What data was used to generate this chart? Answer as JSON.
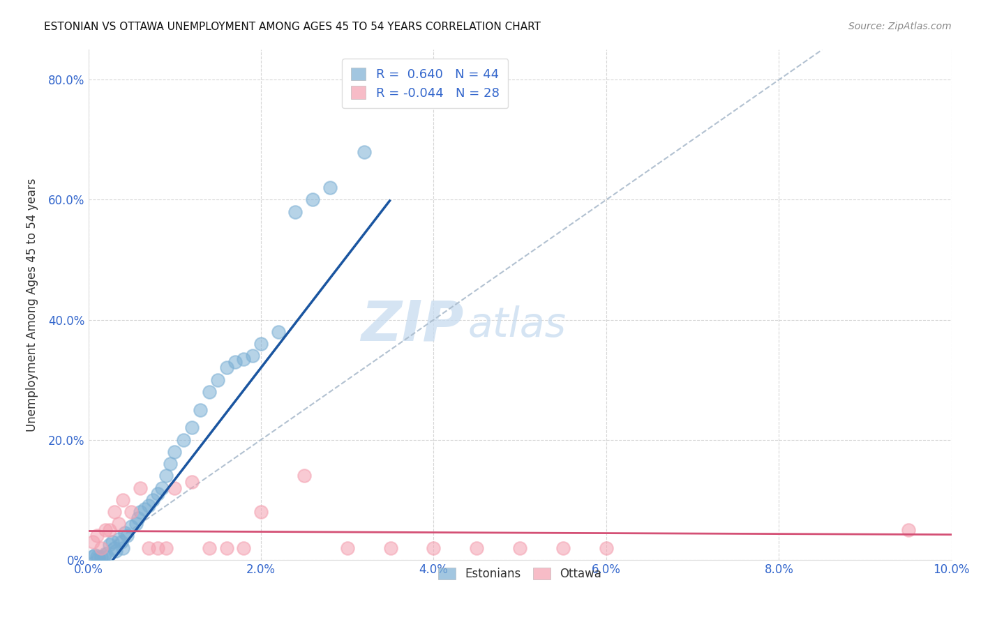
{
  "title": "ESTONIAN VS OTTAWA UNEMPLOYMENT AMONG AGES 45 TO 54 YEARS CORRELATION CHART",
  "source": "Source: ZipAtlas.com",
  "xlabel": "",
  "ylabel": "Unemployment Among Ages 45 to 54 years",
  "xlim": [
    0.0,
    10.0
  ],
  "ylim": [
    0.0,
    85.0
  ],
  "xticks": [
    0.0,
    2.0,
    4.0,
    6.0,
    8.0,
    10.0
  ],
  "xtick_labels": [
    "0.0%",
    "2.0%",
    "4.0%",
    "6.0%",
    "8.0%",
    "10.0%"
  ],
  "yticks": [
    0.0,
    20.0,
    40.0,
    60.0,
    80.0
  ],
  "ytick_labels": [
    "0%",
    "20.0%",
    "40.0%",
    "60.0%",
    "80.0%"
  ],
  "blue_color": "#7BAFD4",
  "pink_color": "#F4A0B0",
  "blue_line_color": "#1A55A0",
  "pink_line_color": "#D45075",
  "diag_line_color": "#AABBCC",
  "legend_R_blue": "0.640",
  "legend_N_blue": "44",
  "legend_R_pink": "-0.044",
  "legend_N_pink": "28",
  "legend_label_blue": "Estonians",
  "legend_label_pink": "Ottawa",
  "watermark_zip": "ZIP",
  "watermark_atlas": "atlas",
  "estonians_x": [
    0.05,
    0.08,
    0.1,
    0.12,
    0.15,
    0.18,
    0.2,
    0.22,
    0.25,
    0.28,
    0.3,
    0.32,
    0.35,
    0.38,
    0.4,
    0.42,
    0.45,
    0.5,
    0.55,
    0.58,
    0.6,
    0.65,
    0.7,
    0.75,
    0.8,
    0.85,
    0.9,
    0.95,
    1.0,
    1.1,
    1.2,
    1.3,
    1.4,
    1.5,
    1.6,
    1.7,
    1.8,
    1.9,
    2.0,
    2.2,
    2.4,
    2.6,
    2.8,
    3.2
  ],
  "estonians_y": [
    0.5,
    0.8,
    0.5,
    0.3,
    0.4,
    0.5,
    1.0,
    0.5,
    2.5,
    3.0,
    2.0,
    1.5,
    3.5,
    3.0,
    2.0,
    4.5,
    4.0,
    5.5,
    6.0,
    7.0,
    8.0,
    8.5,
    9.0,
    10.0,
    11.0,
    12.0,
    14.0,
    16.0,
    18.0,
    20.0,
    22.0,
    25.0,
    28.0,
    30.0,
    32.0,
    33.0,
    33.5,
    34.0,
    36.0,
    38.0,
    58.0,
    60.0,
    62.0,
    68.0
  ],
  "ottawa_x": [
    0.05,
    0.1,
    0.15,
    0.2,
    0.25,
    0.3,
    0.35,
    0.4,
    0.5,
    0.6,
    0.7,
    0.8,
    0.9,
    1.0,
    1.2,
    1.4,
    1.6,
    1.8,
    2.0,
    2.5,
    3.0,
    3.5,
    4.0,
    4.5,
    5.0,
    5.5,
    6.0,
    9.5
  ],
  "ottawa_y": [
    3.0,
    4.0,
    2.0,
    5.0,
    5.0,
    8.0,
    6.0,
    10.0,
    8.0,
    12.0,
    2.0,
    2.0,
    2.0,
    12.0,
    13.0,
    2.0,
    2.0,
    2.0,
    8.0,
    14.0,
    2.0,
    2.0,
    2.0,
    2.0,
    2.0,
    2.0,
    2.0,
    5.0
  ],
  "blue_line_x": [
    -1.0,
    3.5
  ],
  "blue_line_y": [
    -24.0,
    60.0
  ],
  "pink_line_x": [
    0.0,
    10.0
  ],
  "pink_line_y": [
    4.8,
    4.2
  ],
  "diag_line_x": [
    0.0,
    8.5
  ],
  "diag_line_y": [
    0.0,
    85.0
  ]
}
